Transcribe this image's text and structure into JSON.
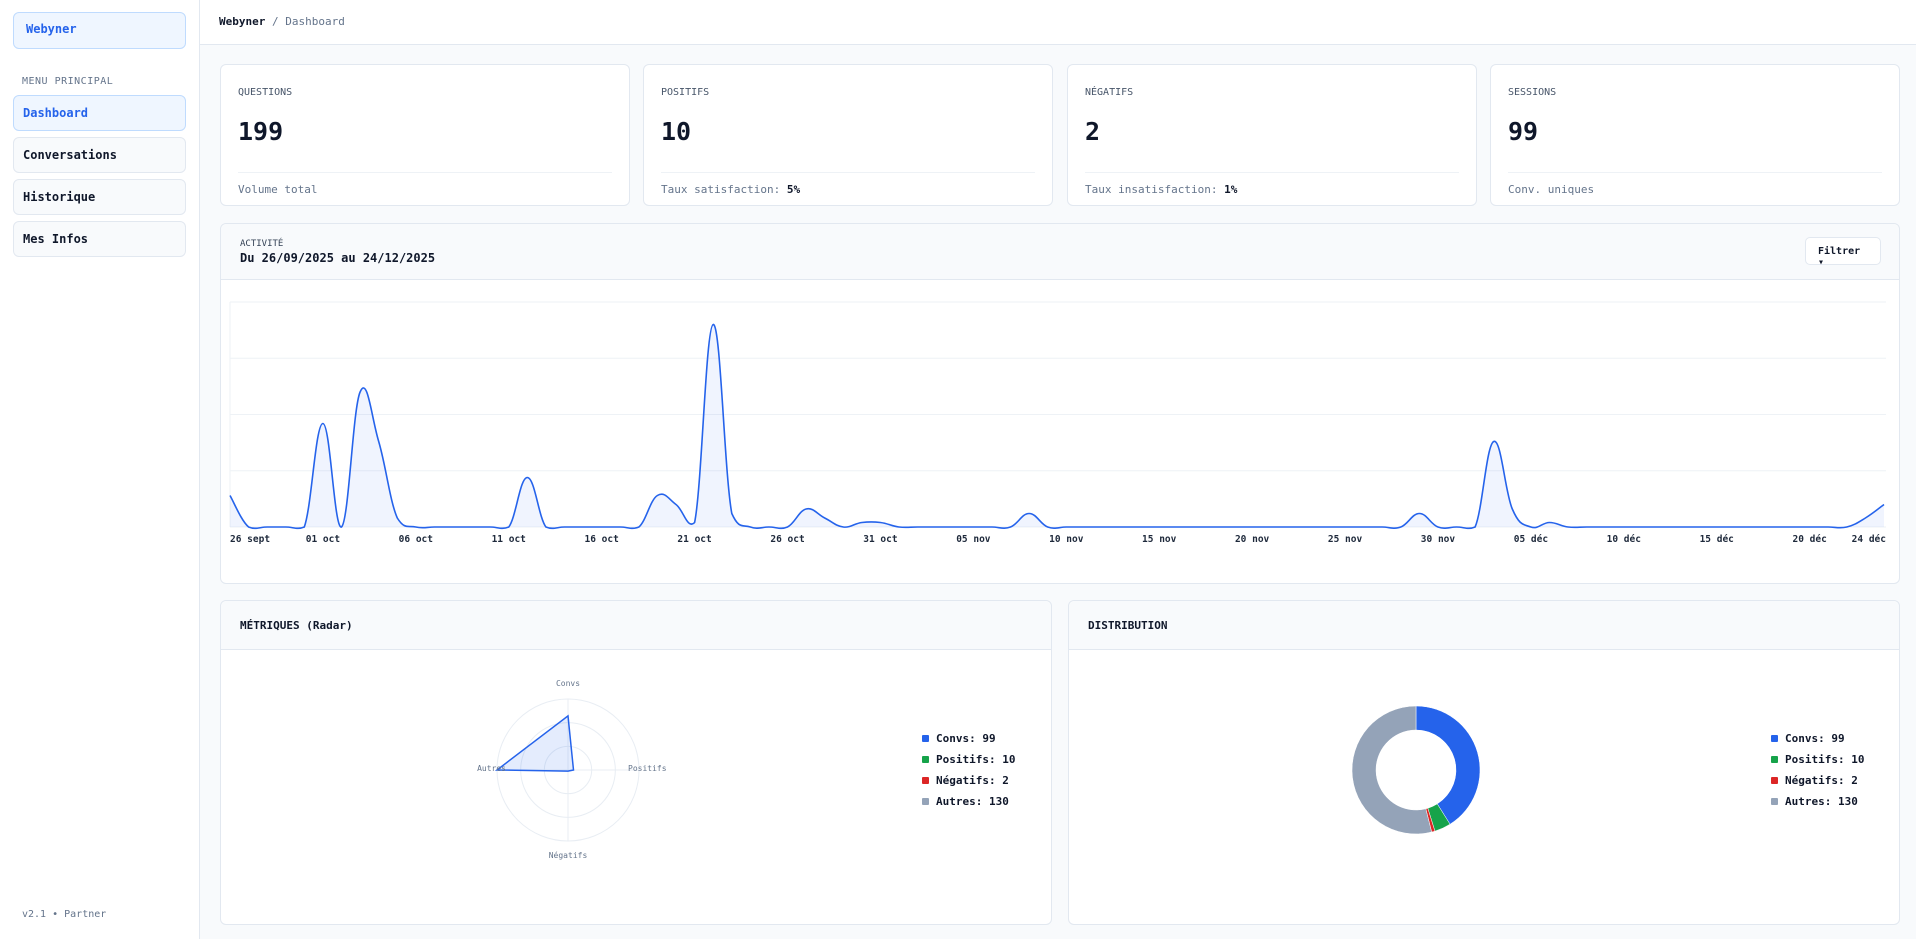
{
  "sidebar": {
    "brand": "Webyner",
    "menu_label": "MENU PRINCIPAL",
    "items": [
      {
        "label": "Dashboard",
        "active": true
      },
      {
        "label": "Conversations"
      },
      {
        "label": "Historique"
      },
      {
        "label": "Mes Infos"
      }
    ],
    "version": "v2.1 • Partner"
  },
  "header": {
    "breadcrumb": [
      "Webyner",
      "/",
      "Dashboard"
    ]
  },
  "kpis": [
    {
      "label": "QUESTIONS",
      "value": "199",
      "foot": "Volume total",
      "foot_value": ""
    },
    {
      "label": "POSITIFS",
      "value": "10",
      "foot": "Taux satisfaction: ",
      "foot_value": "5%"
    },
    {
      "label": "NÉGATIFS",
      "value": "2",
      "foot": "Taux insatisfaction: ",
      "foot_value": "1%"
    },
    {
      "label": "SESSIONS",
      "value": "99",
      "foot": "Conv. uniques",
      "foot_value": ""
    }
  ],
  "activity": {
    "kicker": "ACTIVITÉ",
    "range": "Du 26/09/2025 au 24/12/2025",
    "filter_label": "Filtrer ▾"
  },
  "radar_panel": {
    "title": "MÉTRIQUES (Radar)"
  },
  "distribution_panel": {
    "title": "DISTRIBUTION"
  },
  "colors": {
    "accent": "#2563eb",
    "positive": "#16a34a",
    "negative": "#dc2626",
    "other": "#94a3b8"
  },
  "chart_data": [
    {
      "type": "area",
      "xlim": [
        "2025-09-26",
        "2025-12-24"
      ],
      "ylim": [
        0,
        50
      ],
      "grid": true,
      "smooth": true,
      "color": "#2563eb",
      "points": [
        {
          "date": "2025-09-26",
          "value": 7
        },
        {
          "date": "2025-10-01",
          "value": 23
        },
        {
          "date": "2025-10-03",
          "value": 30
        },
        {
          "date": "2025-10-04",
          "value": 19
        },
        {
          "date": "2025-10-05",
          "value": 2
        },
        {
          "date": "2025-10-12",
          "value": 11
        },
        {
          "date": "2025-10-19",
          "value": 7
        },
        {
          "date": "2025-10-20",
          "value": 5
        },
        {
          "date": "2025-10-21",
          "value": 1
        },
        {
          "date": "2025-10-22",
          "value": 45
        },
        {
          "date": "2025-10-23",
          "value": 3
        },
        {
          "date": "2025-10-27",
          "value": 4
        },
        {
          "date": "2025-10-28",
          "value": 2
        },
        {
          "date": "2025-10-30",
          "value": 1
        },
        {
          "date": "2025-10-31",
          "value": 1
        },
        {
          "date": "2025-11-08",
          "value": 3
        },
        {
          "date": "2025-11-29",
          "value": 3
        },
        {
          "date": "2025-12-03",
          "value": 19
        },
        {
          "date": "2025-12-04",
          "value": 4
        },
        {
          "date": "2025-12-06",
          "value": 1
        },
        {
          "date": "2025-12-23",
          "value": 2
        },
        {
          "date": "2025-12-24",
          "value": 5
        }
      ],
      "x_ticks": [
        {
          "date": "2025-09-26",
          "label": "26 sept"
        },
        {
          "date": "2025-10-01",
          "label": "01 oct"
        },
        {
          "date": "2025-10-06",
          "label": "06 oct"
        },
        {
          "date": "2025-10-11",
          "label": "11 oct"
        },
        {
          "date": "2025-10-16",
          "label": "16 oct"
        },
        {
          "date": "2025-10-21",
          "label": "21 oct"
        },
        {
          "date": "2025-10-26",
          "label": "26 oct"
        },
        {
          "date": "2025-10-31",
          "label": "31 oct"
        },
        {
          "date": "2025-11-05",
          "label": "05 nov"
        },
        {
          "date": "2025-11-10",
          "label": "10 nov"
        },
        {
          "date": "2025-11-15",
          "label": "15 nov"
        },
        {
          "date": "2025-11-20",
          "label": "20 nov"
        },
        {
          "date": "2025-11-25",
          "label": "25 nov"
        },
        {
          "date": "2025-11-30",
          "label": "30 nov"
        },
        {
          "date": "2025-12-05",
          "label": "05 déc"
        },
        {
          "date": "2025-12-10",
          "label": "10 déc"
        },
        {
          "date": "2025-12-15",
          "label": "15 déc"
        },
        {
          "date": "2025-12-20",
          "label": "20 déc"
        },
        {
          "date": "2025-12-24",
          "label": "24 déc"
        }
      ]
    },
    {
      "type": "radar",
      "axes": [
        "Convs",
        "Positifs",
        "Négatifs",
        "Autres"
      ],
      "values": [
        99,
        10,
        2,
        130
      ],
      "rmax": 130,
      "color": "#2563eb",
      "legend": [
        {
          "label": "Convs: 99",
          "color": "#2563eb"
        },
        {
          "label": "Positifs: 10",
          "color": "#16a34a"
        },
        {
          "label": "Négatifs: 2",
          "color": "#dc2626"
        },
        {
          "label": "Autres: 130",
          "color": "#94a3b8"
        }
      ],
      "legend_position": "right"
    },
    {
      "type": "pie",
      "donut": true,
      "categories": [
        "Convs",
        "Positifs",
        "Négatifs",
        "Autres"
      ],
      "values": [
        99,
        10,
        2,
        130
      ],
      "colors": [
        "#2563eb",
        "#16a34a",
        "#dc2626",
        "#94a3b8"
      ],
      "legend": [
        {
          "label": "Convs: 99",
          "color": "#2563eb"
        },
        {
          "label": "Positifs: 10",
          "color": "#16a34a"
        },
        {
          "label": "Négatifs: 2",
          "color": "#dc2626"
        },
        {
          "label": "Autres: 130",
          "color": "#94a3b8"
        }
      ],
      "legend_position": "right"
    }
  ]
}
